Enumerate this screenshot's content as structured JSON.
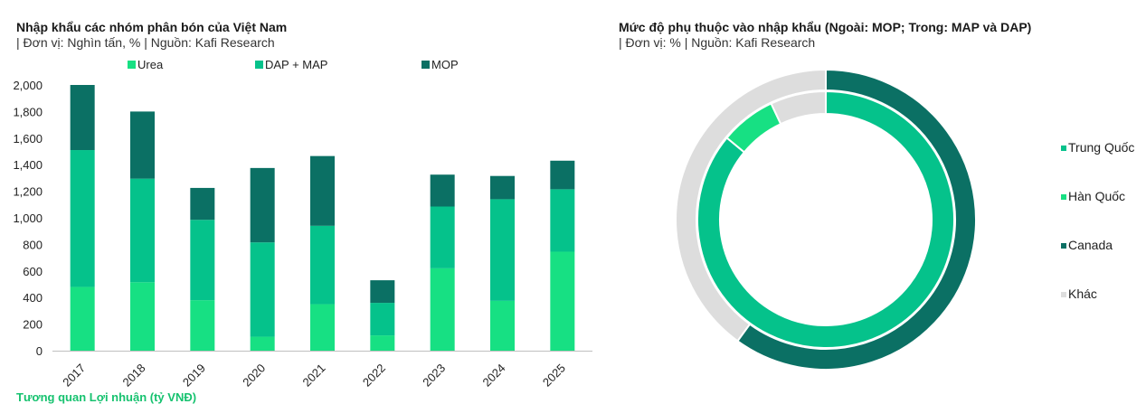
{
  "footer_text": "Tương quan Lợi nhuận (tỷ VNĐ)",
  "colors": {
    "urea": "#17e083",
    "dap_map": "#05c28b",
    "mop": "#0b7064",
    "trung_quoc": "#05c28b",
    "han_quoc": "#17e083",
    "canada": "#0b7064",
    "khac": "#dddddd"
  },
  "chart_data": [
    {
      "type": "bar",
      "stacked": true,
      "title": "Nhập khẩu các nhóm phân bón của Việt Nam",
      "subtitle": "| Đơn vị: Nghìn tấn, % | Nguồn: Kafi Research",
      "categories": [
        "2017",
        "2018",
        "2019",
        "2020",
        "2021",
        "2022",
        "2023",
        "2024",
        "2025"
      ],
      "series": [
        {
          "name": "Urea",
          "values": [
            480,
            515,
            380,
            105,
            350,
            115,
            620,
            375,
            745
          ]
        },
        {
          "name": "DAP + MAP",
          "values": [
            1030,
            780,
            605,
            710,
            590,
            245,
            465,
            765,
            470
          ]
        },
        {
          "name": "MOP",
          "values": [
            490,
            505,
            240,
            560,
            525,
            170,
            240,
            175,
            215
          ]
        }
      ],
      "yticks": [
        "0",
        "200",
        "400",
        "600",
        "800",
        "1,000",
        "1,200",
        "1,400",
        "1,600",
        "1,800",
        "2,000"
      ],
      "ylim": [
        0,
        2000
      ],
      "legend_position": "top",
      "grid": false
    },
    {
      "type": "pie",
      "variant": "double-donut",
      "title": "Mức độ phụ thuộc vào nhập khẩu (Ngoài: MOP; Trong: MAP và DAP)",
      "subtitle": "| Đơn vị: % | Nguồn: Kafi Research",
      "legend": [
        "Trung Quốc",
        "Hàn Quốc",
        "Canada",
        "Khác"
      ],
      "legend_position": "right",
      "outer_ring": {
        "series": "MOP",
        "slices": [
          {
            "label": "Canada",
            "value": 60
          },
          {
            "label": "Khác",
            "value": 40
          }
        ]
      },
      "inner_ring": {
        "series": "MAP và DAP",
        "slices": [
          {
            "label": "Trung Quốc",
            "value": 86
          },
          {
            "label": "Hàn Quốc",
            "value": 7
          },
          {
            "label": "Khác",
            "value": 7
          }
        ]
      }
    }
  ]
}
